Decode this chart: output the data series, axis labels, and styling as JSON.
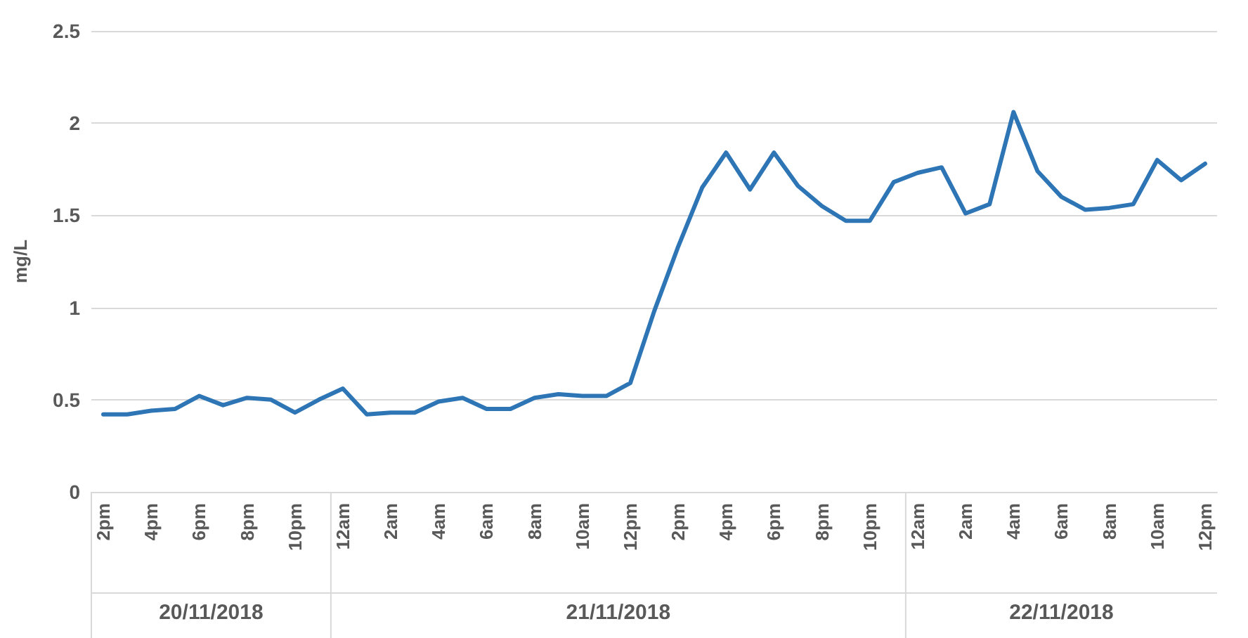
{
  "chart_data": {
    "type": "line",
    "ylabel": "mg/L",
    "categories": [
      "2pm",
      null,
      "4pm",
      null,
      "6pm",
      null,
      "8pm",
      null,
      "10pm",
      null,
      "12am",
      null,
      "2am",
      null,
      "4am",
      null,
      "6am",
      null,
      "8am",
      null,
      "10am",
      null,
      "12pm",
      null,
      "2pm",
      null,
      "4pm",
      null,
      "6pm",
      null,
      "8pm",
      null,
      "10pm",
      null,
      "12am",
      null,
      "2am",
      null,
      "4am",
      null,
      "6am",
      null,
      "8am",
      null,
      "10am",
      null,
      "12pm"
    ],
    "series": [
      {
        "color": "#2e75b6",
        "values": [
          0.42,
          0.42,
          0.44,
          0.45,
          0.52,
          0.47,
          0.51,
          0.5,
          0.43,
          0.5,
          0.56,
          0.42,
          0.43,
          0.43,
          0.49,
          0.51,
          0.45,
          0.45,
          0.51,
          0.53,
          0.52,
          0.52,
          0.59,
          0.98,
          1.33,
          1.65,
          1.84,
          1.64,
          1.84,
          1.66,
          1.55,
          1.47,
          1.47,
          1.68,
          1.73,
          1.76,
          1.51,
          1.56,
          2.06,
          1.74,
          1.6,
          1.53,
          1.54,
          1.56,
          1.8,
          1.69,
          1.78
        ]
      }
    ],
    "ylim": [
      0,
      2.5
    ],
    "yticks": [
      0,
      0.5,
      1,
      1.5,
      2,
      2.5
    ],
    "grid": "y",
    "marker": "none",
    "line_style": "solid",
    "annotations": [
      "20/11/2018",
      "21/11/2018",
      "22/11/2018"
    ]
  }
}
